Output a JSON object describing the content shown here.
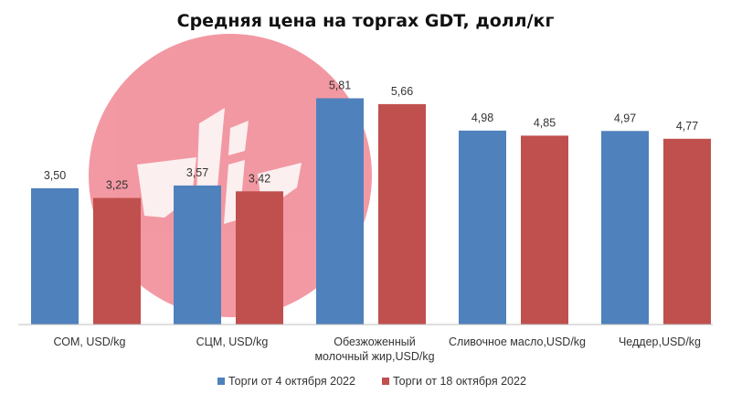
{
  "chart_data": {
    "type": "bar",
    "title": "Средняя цена на торгах GDT, долл/кг",
    "categories": [
      [
        "СОМ, USD/kg"
      ],
      [
        "СЦМ, USD/kg"
      ],
      [
        "Обезжоженный",
        "молочный жир,USD/kg"
      ],
      [
        "Сливочное масло,USD/kg"
      ],
      [
        "Чеддер,USD/kg"
      ]
    ],
    "series": [
      {
        "name": "Торги от 4 октября 2022",
        "color": "#4f81bd",
        "values": [
          3.5,
          3.57,
          5.81,
          4.98,
          4.97
        ],
        "labels": [
          "3,50",
          "3,57",
          "5,81",
          "4,98",
          "4,97"
        ]
      },
      {
        "name": "Торги от 18 октября 2022",
        "color": "#c0504d",
        "values": [
          3.25,
          3.42,
          5.66,
          4.85,
          4.77
        ],
        "labels": [
          "3,25",
          "3,42",
          "5,66",
          "4,85",
          "4,77"
        ]
      }
    ],
    "ylim": [
      0,
      6
    ],
    "grid": false,
    "legend": "bottom-center",
    "watermark_color": "#ef7f8c"
  }
}
